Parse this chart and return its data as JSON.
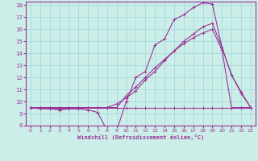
{
  "background_color": "#cceee8",
  "grid_color": "#aadddd",
  "line_color": "#993399",
  "xlabel": "Windchill (Refroidissement éolien,°C)",
  "xlim": [
    -0.5,
    23.5
  ],
  "ylim": [
    8,
    18.3
  ],
  "yticks": [
    8,
    9,
    10,
    11,
    12,
    13,
    14,
    15,
    16,
    17,
    18
  ],
  "xticks": [
    0,
    1,
    2,
    3,
    4,
    5,
    6,
    7,
    8,
    9,
    10,
    11,
    12,
    13,
    14,
    15,
    16,
    17,
    18,
    19,
    20,
    21,
    22,
    23
  ],
  "line1_x": [
    0,
    1,
    2,
    3,
    4,
    5,
    6,
    7,
    8,
    9,
    10,
    11,
    12,
    13,
    14,
    15,
    16,
    17,
    18,
    19,
    20,
    21,
    22,
    23
  ],
  "line1_y": [
    9.5,
    9.5,
    9.5,
    9.5,
    9.5,
    9.5,
    9.5,
    9.5,
    9.5,
    9.5,
    9.5,
    9.5,
    9.5,
    9.5,
    9.5,
    9.5,
    9.5,
    9.5,
    9.5,
    9.5,
    9.5,
    9.5,
    9.5,
    9.5
  ],
  "line2_x": [
    0,
    1,
    2,
    3,
    4,
    5,
    6,
    7,
    8,
    9,
    10,
    11,
    12,
    13,
    14,
    15,
    16,
    17,
    18,
    19,
    20,
    21,
    22,
    23
  ],
  "line2_y": [
    9.5,
    9.5,
    9.4,
    9.4,
    9.4,
    9.4,
    9.5,
    9.5,
    9.5,
    9.8,
    10.3,
    10.9,
    11.8,
    12.5,
    13.4,
    14.2,
    15.0,
    15.6,
    16.2,
    16.5,
    14.5,
    12.2,
    10.7,
    9.5
  ],
  "line3_x": [
    0,
    1,
    2,
    3,
    4,
    5,
    6,
    7,
    8,
    9,
    10,
    11,
    12,
    13,
    14,
    15,
    16,
    17,
    18,
    19,
    20,
    21,
    22,
    23
  ],
  "line3_y": [
    9.5,
    9.4,
    9.4,
    9.3,
    9.4,
    9.4,
    9.3,
    9.1,
    7.6,
    7.6,
    10.0,
    12.0,
    12.5,
    14.7,
    15.2,
    16.8,
    17.2,
    17.8,
    18.2,
    18.1,
    14.5,
    12.2,
    10.8,
    9.5
  ],
  "line4_x": [
    0,
    1,
    2,
    3,
    4,
    5,
    6,
    7,
    8,
    9,
    10,
    11,
    12,
    13,
    14,
    15,
    16,
    17,
    18,
    19,
    20,
    21,
    22,
    23
  ],
  "line4_y": [
    9.5,
    9.5,
    9.5,
    9.5,
    9.5,
    9.5,
    9.5,
    9.5,
    9.5,
    9.5,
    10.5,
    11.2,
    12.0,
    12.8,
    13.5,
    14.2,
    14.8,
    15.3,
    15.7,
    16.0,
    14.3,
    9.5,
    9.5,
    9.5
  ]
}
